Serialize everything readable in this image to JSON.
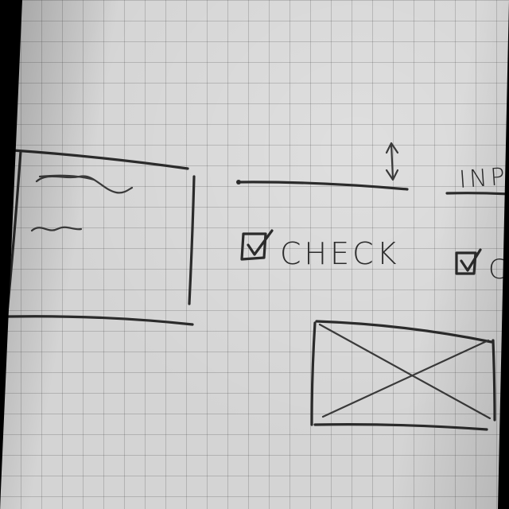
{
  "sketch": {
    "checkbox_1": {
      "label": "CHECK",
      "checked": true
    },
    "checkbox_2": {
      "label": "C",
      "checked": true
    },
    "input_label": "INPU",
    "icons": {
      "stepper": "up-down-arrow-icon",
      "image_placeholder": "crossed-box-image-icon",
      "checkmark": "checkmark-icon"
    }
  }
}
